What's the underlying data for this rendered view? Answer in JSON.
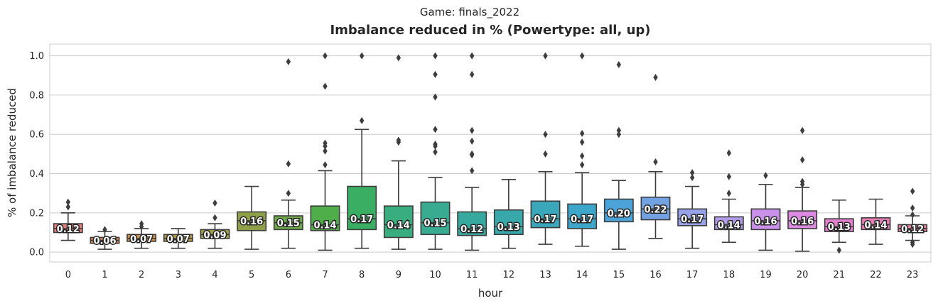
{
  "chart_data": {
    "type": "box",
    "suptitle": "Game: finals_2022",
    "title": "Imbalance reduced in % (Powertype: all, up)",
    "xlabel": "hour",
    "ylabel": "% of imbalance reduced",
    "ylim": [
      -0.05,
      1.06
    ],
    "yticks": [
      "0.0",
      "0.2",
      "0.4",
      "0.6",
      "0.8",
      "1.0"
    ],
    "grid": "y",
    "categories": [
      "0",
      "1",
      "2",
      "3",
      "4",
      "5",
      "6",
      "7",
      "8",
      "9",
      "10",
      "11",
      "12",
      "13",
      "14",
      "15",
      "16",
      "17",
      "18",
      "19",
      "20",
      "21",
      "22",
      "23"
    ],
    "colors": [
      "#e8807b",
      "#e0864e",
      "#d0914c",
      "#b89a48",
      "#a29f4a",
      "#8ea048",
      "#6fa84a",
      "#4fae4a",
      "#3aaf63",
      "#3aad7e",
      "#38ab91",
      "#37a99e",
      "#38a8ab",
      "#3aa8ba",
      "#3fa6cb",
      "#4ba3d8",
      "#72a2e2",
      "#98a2e8",
      "#b39bea",
      "#c991ea",
      "#dc89e2",
      "#e47fcd",
      "#e67db4",
      "#e8829a"
    ],
    "boxes": [
      {
        "q1": 0.1,
        "median": 0.12,
        "q3": 0.145,
        "whisker_low": 0.06,
        "whisker_high": 0.2,
        "outliers": [
          0.23,
          0.255
        ],
        "label": "0.12"
      },
      {
        "q1": 0.045,
        "median": 0.06,
        "q3": 0.075,
        "whisker_low": 0.015,
        "whisker_high": 0.105,
        "outliers": [
          0.115
        ],
        "label": "0.06"
      },
      {
        "q1": 0.055,
        "median": 0.07,
        "q3": 0.09,
        "whisker_low": 0.02,
        "whisker_high": 0.12,
        "outliers": [
          0.13,
          0.145
        ],
        "label": "0.07"
      },
      {
        "q1": 0.055,
        "median": 0.07,
        "q3": 0.09,
        "whisker_low": 0.02,
        "whisker_high": 0.12,
        "outliers": [],
        "label": "0.07"
      },
      {
        "q1": 0.07,
        "median": 0.09,
        "q3": 0.115,
        "whisker_low": 0.02,
        "whisker_high": 0.145,
        "outliers": [
          0.175,
          0.25
        ],
        "label": "0.09"
      },
      {
        "q1": 0.11,
        "median": 0.16,
        "q3": 0.205,
        "whisker_low": 0.015,
        "whisker_high": 0.335,
        "outliers": [],
        "label": "0.16"
      },
      {
        "q1": 0.115,
        "median": 0.15,
        "q3": 0.185,
        "whisker_low": 0.02,
        "whisker_high": 0.265,
        "outliers": [
          0.3,
          0.45,
          0.97
        ],
        "label": "0.15"
      },
      {
        "q1": 0.11,
        "median": 0.14,
        "q3": 0.235,
        "whisker_low": 0.01,
        "whisker_high": 0.415,
        "outliers": [
          0.445,
          0.515,
          0.54,
          0.555,
          0.845,
          1.0
        ],
        "label": "0.14"
      },
      {
        "q1": 0.115,
        "median": 0.17,
        "q3": 0.335,
        "whisker_low": 0.02,
        "whisker_high": 0.625,
        "outliers": [
          0.67,
          1.0
        ],
        "label": "0.17"
      },
      {
        "q1": 0.075,
        "median": 0.14,
        "q3": 0.235,
        "whisker_low": 0.015,
        "whisker_high": 0.465,
        "outliers": [
          0.56,
          0.57,
          0.99
        ],
        "label": "0.14"
      },
      {
        "q1": 0.09,
        "median": 0.15,
        "q3": 0.255,
        "whisker_low": 0.015,
        "whisker_high": 0.38,
        "outliers": [
          0.51,
          0.54,
          0.55,
          0.625,
          0.79,
          0.905,
          1.0
        ],
        "label": "0.15"
      },
      {
        "q1": 0.085,
        "median": 0.12,
        "q3": 0.205,
        "whisker_low": 0.01,
        "whisker_high": 0.33,
        "outliers": [
          0.415,
          0.495,
          0.5,
          0.565,
          0.62,
          0.905,
          1.0
        ],
        "label": "0.12"
      },
      {
        "q1": 0.09,
        "median": 0.13,
        "q3": 0.215,
        "whisker_low": 0.02,
        "whisker_high": 0.37,
        "outliers": [],
        "label": "0.13"
      },
      {
        "q1": 0.125,
        "median": 0.17,
        "q3": 0.26,
        "whisker_low": 0.04,
        "whisker_high": 0.41,
        "outliers": [
          0.5,
          0.6,
          1.0
        ],
        "label": "0.17"
      },
      {
        "q1": 0.12,
        "median": 0.17,
        "q3": 0.245,
        "whisker_low": 0.03,
        "whisker_high": 0.405,
        "outliers": [
          0.445,
          0.49,
          0.56,
          0.605,
          1.0
        ],
        "label": "0.17"
      },
      {
        "q1": 0.155,
        "median": 0.2,
        "q3": 0.27,
        "whisker_low": 0.015,
        "whisker_high": 0.365,
        "outliers": [
          0.6,
          0.62,
          0.955
        ],
        "label": "0.20"
      },
      {
        "q1": 0.165,
        "median": 0.22,
        "q3": 0.28,
        "whisker_low": 0.07,
        "whisker_high": 0.41,
        "outliers": [
          0.46,
          0.89
        ],
        "label": "0.22"
      },
      {
        "q1": 0.135,
        "median": 0.17,
        "q3": 0.22,
        "whisker_low": 0.02,
        "whisker_high": 0.335,
        "outliers": [
          0.38,
          0.405
        ],
        "label": "0.17"
      },
      {
        "q1": 0.115,
        "median": 0.14,
        "q3": 0.18,
        "whisker_low": 0.05,
        "whisker_high": 0.27,
        "outliers": [
          0.3,
          0.385,
          0.505
        ],
        "label": "0.14"
      },
      {
        "q1": 0.115,
        "median": 0.16,
        "q3": 0.22,
        "whisker_low": 0.01,
        "whisker_high": 0.345,
        "outliers": [
          0.39
        ],
        "label": "0.16"
      },
      {
        "q1": 0.12,
        "median": 0.16,
        "q3": 0.21,
        "whisker_low": 0.005,
        "whisker_high": 0.33,
        "outliers": [
          0.345,
          0.36,
          0.47,
          0.62
        ],
        "label": "0.16"
      },
      {
        "q1": 0.105,
        "median": 0.13,
        "q3": 0.17,
        "whisker_low": 0.05,
        "whisker_high": 0.265,
        "outliers": [
          0.01
        ],
        "label": "0.13"
      },
      {
        "q1": 0.115,
        "median": 0.14,
        "q3": 0.175,
        "whisker_low": 0.04,
        "whisker_high": 0.27,
        "outliers": [],
        "label": "0.14"
      },
      {
        "q1": 0.105,
        "median": 0.12,
        "q3": 0.14,
        "whisker_low": 0.06,
        "whisker_high": 0.185,
        "outliers": [
          0.04,
          0.05,
          0.19,
          0.225,
          0.31
        ],
        "label": "0.12"
      }
    ]
  }
}
